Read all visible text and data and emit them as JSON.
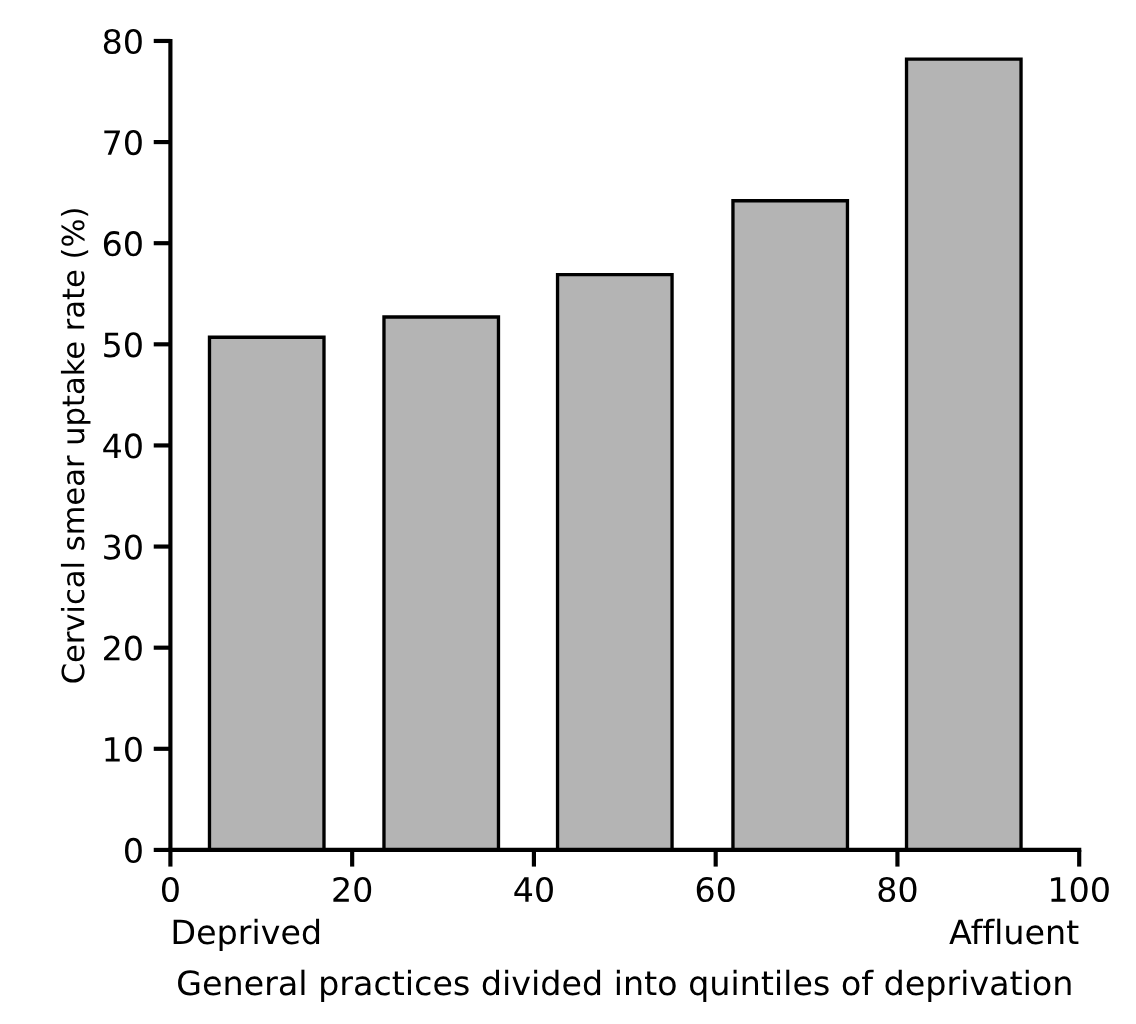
{
  "chart_data": {
    "type": "bar",
    "x": [
      10.6,
      29.8,
      48.9,
      68.2,
      87.3
    ],
    "values": [
      50.7,
      52.7,
      56.9,
      64.2,
      78.2
    ],
    "color": "#b4b4b4",
    "xlim": [
      0,
      100
    ],
    "xticks": [
      0,
      20,
      40,
      60,
      80,
      100
    ],
    "ylim": [
      0,
      80
    ],
    "yticks": [
      0,
      10,
      20,
      30,
      40,
      50,
      60,
      70,
      80
    ],
    "xlabel": "General practices divided into quintiles of deprivation",
    "ylabel": "Cervical smear uptake rate (%)",
    "annotations": [
      "Deprived",
      "Affluent"
    ],
    "grid": false
  }
}
